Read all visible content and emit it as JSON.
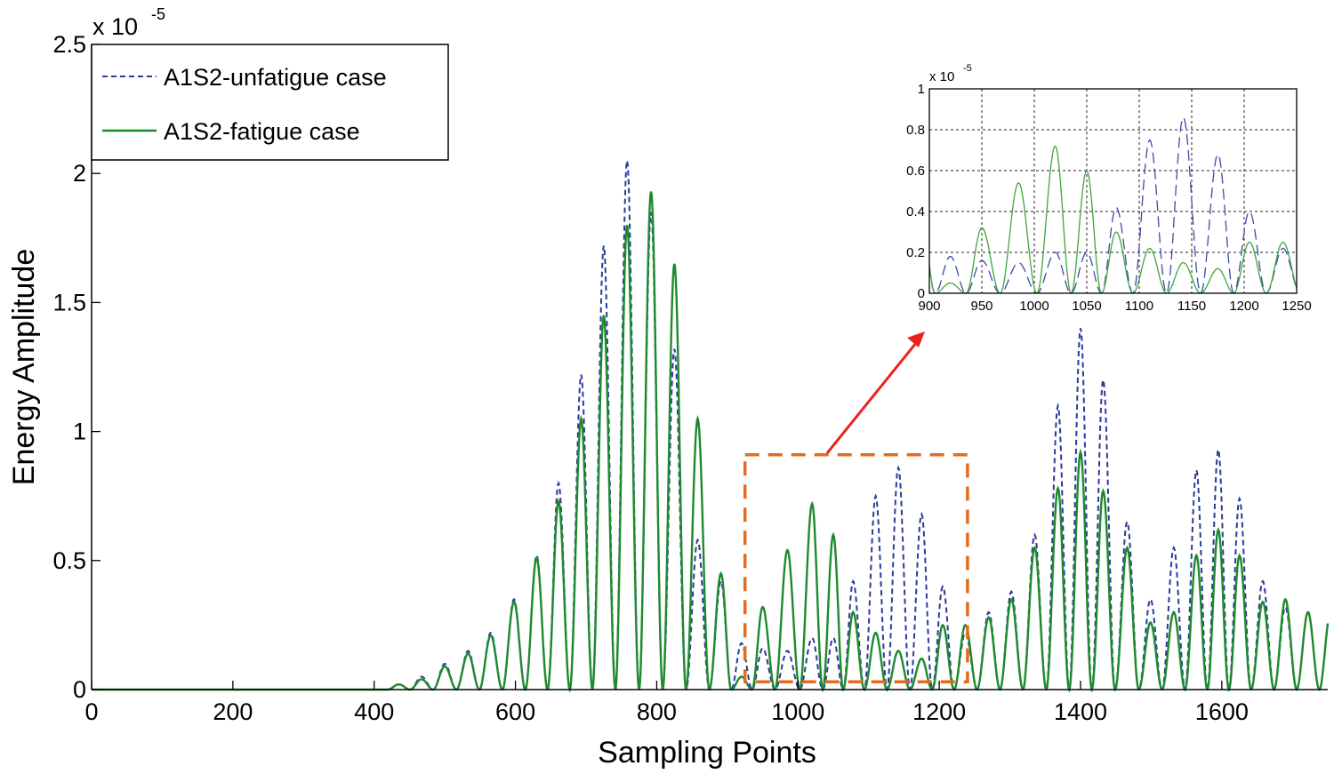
{
  "chart_data": [
    {
      "type": "line",
      "id": "main",
      "xlabel": "Sampling Points",
      "ylabel": "Energy Amplitude",
      "exponent_label": "x 10",
      "exponent_power": "-5",
      "xlim": [
        0,
        1750
      ],
      "ylim": [
        0,
        2.5
      ],
      "x_ticks": [
        0,
        200,
        400,
        600,
        800,
        1000,
        1200,
        1400,
        1600
      ],
      "x_tick_labels": [
        "0",
        "200",
        "400",
        "600",
        "800",
        "1000",
        "1200",
        "1400",
        "1600"
      ],
      "y_ticks": [
        0,
        0.5,
        1,
        1.5,
        2,
        2.5
      ],
      "y_tick_labels": [
        "0",
        "0.5",
        "1",
        "1.5",
        "2",
        "2.5"
      ],
      "grid": false,
      "legend_position": "top-left",
      "series": [
        {
          "name": "A1S2-unfatigue case",
          "style": "dashed",
          "color": "#2b3a9a",
          "peaks_x": [
            435,
            467,
            500,
            533,
            565,
            598,
            630,
            661,
            693,
            725,
            758,
            792,
            825,
            858,
            891,
            920,
            950,
            985,
            1020,
            1050,
            1078,
            1110,
            1142,
            1175,
            1205,
            1237,
            1270,
            1302,
            1335,
            1368,
            1400,
            1432,
            1466,
            1499,
            1532,
            1564,
            1595,
            1625,
            1658,
            1690,
            1722
          ],
          "peaks_y": [
            0.02,
            0.05,
            0.1,
            0.15,
            0.22,
            0.35,
            0.52,
            0.8,
            1.22,
            1.72,
            2.05,
            1.85,
            1.32,
            0.58,
            0.42,
            0.18,
            0.16,
            0.15,
            0.2,
            0.2,
            0.42,
            0.75,
            0.86,
            0.68,
            0.4,
            0.22,
            0.3,
            0.38,
            0.6,
            1.1,
            1.4,
            1.2,
            0.65,
            0.35,
            0.55,
            0.85,
            0.93,
            0.74,
            0.42,
            0.32,
            0.3
          ]
        },
        {
          "name": "A1S2-fatigue case",
          "style": "solid",
          "color": "#1e8a2e",
          "peaks_x": [
            435,
            467,
            500,
            533,
            565,
            598,
            630,
            661,
            693,
            725,
            758,
            792,
            825,
            858,
            891,
            920,
            950,
            985,
            1020,
            1050,
            1078,
            1110,
            1142,
            1175,
            1205,
            1237,
            1270,
            1302,
            1335,
            1368,
            1400,
            1432,
            1466,
            1499,
            1532,
            1564,
            1595,
            1625,
            1658,
            1690,
            1722
          ],
          "peaks_y": [
            0.02,
            0.04,
            0.09,
            0.14,
            0.21,
            0.34,
            0.51,
            0.73,
            1.05,
            1.45,
            1.8,
            1.93,
            1.65,
            1.05,
            0.45,
            0.05,
            0.32,
            0.54,
            0.72,
            0.6,
            0.3,
            0.22,
            0.15,
            0.12,
            0.25,
            0.25,
            0.28,
            0.35,
            0.55,
            0.78,
            0.92,
            0.77,
            0.55,
            0.26,
            0.3,
            0.52,
            0.62,
            0.52,
            0.34,
            0.35,
            0.3
          ]
        }
      ],
      "highlight_box": {
        "x_range": [
          925,
          1240
        ],
        "y_range": [
          0.03,
          0.91
        ],
        "color": "#e66a1e",
        "style": "dashed"
      },
      "arrow_color": "#e8231e"
    },
    {
      "type": "line",
      "id": "inset",
      "exponent_label": "x 10",
      "exponent_power": "-5",
      "xlim": [
        900,
        1250
      ],
      "ylim": [
        0,
        1
      ],
      "x_ticks": [
        900,
        950,
        1000,
        1050,
        1100,
        1150,
        1200,
        1250
      ],
      "x_tick_labels": [
        "900",
        "950",
        "1000",
        "1050",
        "1100",
        "1150",
        "1200",
        "1250"
      ],
      "y_ticks": [
        0,
        0.2,
        0.4,
        0.6,
        0.8,
        1
      ],
      "y_tick_labels": [
        "0",
        "0.2",
        "0.4",
        "0.6",
        "0.8",
        "1"
      ],
      "grid": true,
      "series_source": "main"
    }
  ]
}
